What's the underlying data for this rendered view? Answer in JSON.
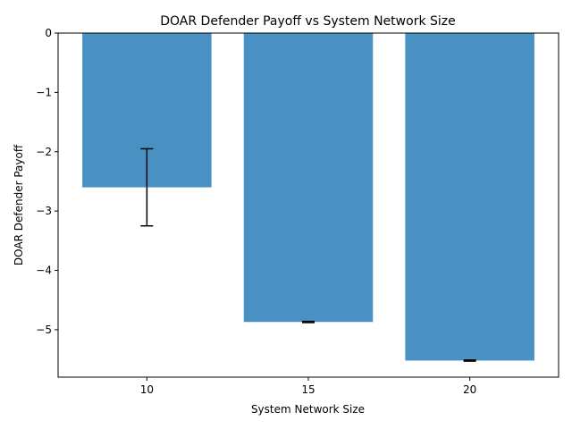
{
  "chart_data": {
    "type": "bar",
    "title": "DOAR Defender Payoff vs System Network Size",
    "xlabel": "System Network Size",
    "ylabel": "DOAR Defender Payoff",
    "categories": [
      "10",
      "15",
      "20"
    ],
    "values": [
      -2.6,
      -4.87,
      -5.52
    ],
    "error_low": [
      -3.25,
      -4.88,
      -5.53
    ],
    "error_high": [
      -1.95,
      -4.86,
      -5.51
    ],
    "ylim": [
      -5.8,
      0
    ],
    "yticks": [
      0,
      -1,
      -2,
      -3,
      -4,
      -5
    ],
    "ytick_labels": [
      "0",
      "−1",
      "−2",
      "−3",
      "−4",
      "−5"
    ],
    "bar_color": "#4a91c3",
    "grid": false,
    "legend": "none"
  }
}
